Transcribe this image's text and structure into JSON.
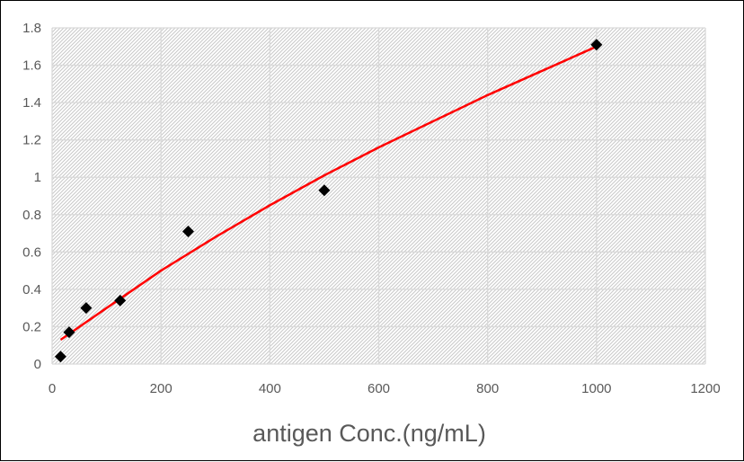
{
  "chart_data": {
    "type": "scatter",
    "title": "",
    "xlabel": "antigen Conc.(ng/mL)",
    "ylabel": "",
    "xlim": [
      0,
      1200
    ],
    "ylim": [
      0,
      1.8
    ],
    "x_ticks": [
      "0",
      "200",
      "400",
      "600",
      "800",
      "1000",
      "1200"
    ],
    "y_ticks": [
      "0",
      "0.2",
      "0.4",
      "0.6",
      "0.8",
      "1",
      "1.2",
      "1.4",
      "1.6",
      "1.8"
    ],
    "grid": true,
    "legend": "none",
    "series": [
      {
        "marker": "diamond",
        "color": "#000000",
        "points": [
          {
            "x": 15.6,
            "y": 0.04
          },
          {
            "x": 31.25,
            "y": 0.17
          },
          {
            "x": 62.5,
            "y": 0.3
          },
          {
            "x": 125,
            "y": 0.34
          },
          {
            "x": 250,
            "y": 0.71
          },
          {
            "x": 500,
            "y": 0.93
          },
          {
            "x": 1000,
            "y": 1.71
          }
        ]
      }
    ],
    "trendline": {
      "color": "#ff0000",
      "points": [
        {
          "x": 15.6,
          "y": 0.13
        },
        {
          "x": 100,
          "y": 0.3
        },
        {
          "x": 200,
          "y": 0.5
        },
        {
          "x": 300,
          "y": 0.68
        },
        {
          "x": 400,
          "y": 0.85
        },
        {
          "x": 500,
          "y": 1.01
        },
        {
          "x": 600,
          "y": 1.16
        },
        {
          "x": 700,
          "y": 1.3
        },
        {
          "x": 800,
          "y": 1.44
        },
        {
          "x": 900,
          "y": 1.57
        },
        {
          "x": 1000,
          "y": 1.7
        }
      ]
    },
    "colors": {
      "plot_background": "#ffffff",
      "hatch": "#d0d0d0",
      "gridline": "#d9d9d9",
      "label": "#595959"
    }
  }
}
